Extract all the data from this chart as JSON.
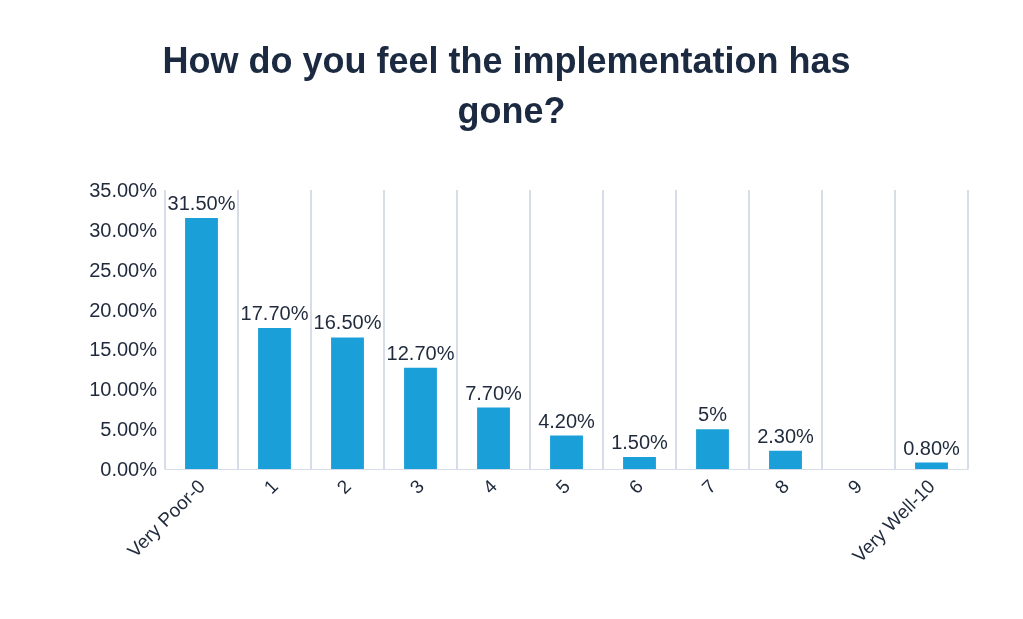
{
  "chart_data": {
    "type": "bar",
    "title": "How do you feel the implementation has gone?",
    "categories": [
      "Very Poor-0",
      "1",
      "2",
      "3",
      "4",
      "5",
      "6",
      "7",
      "8",
      "9",
      "Very Well-10"
    ],
    "values": [
      31.5,
      17.7,
      16.5,
      12.7,
      7.7,
      4.2,
      1.5,
      5,
      2.3,
      null,
      0.8
    ],
    "value_labels": [
      "31.50%",
      "17.70%",
      "16.50%",
      "12.70%",
      "7.70%",
      "4.20%",
      "1.50%",
      "5%",
      "2.30%",
      null,
      "0.80%"
    ],
    "color": "#1a9fd9",
    "ylim": [
      0,
      35
    ],
    "yticks": [
      {
        "value": 0,
        "label": "0.00%"
      },
      {
        "value": 5,
        "label": "5.00%"
      },
      {
        "value": 10,
        "label": "10.00%"
      },
      {
        "value": 15,
        "label": "15.00%"
      },
      {
        "value": 20,
        "label": "20.00%"
      },
      {
        "value": 25,
        "label": "25.00%"
      },
      {
        "value": 30,
        "label": "30.00%"
      },
      {
        "value": 35,
        "label": "35.00%"
      }
    ],
    "grid": "x"
  }
}
